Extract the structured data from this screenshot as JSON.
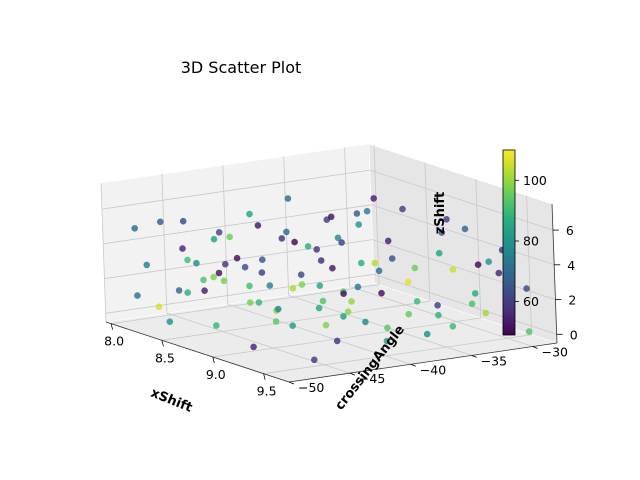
{
  "chart_data": {
    "type": "scatter",
    "subtype": "3d",
    "title": "3D Scatter Plot",
    "xlabel": "xShift",
    "ylabel": "crossingAngle",
    "zlabel": "zShift",
    "xlim": [
      7.95,
      9.75
    ],
    "ylim": [
      -50,
      -28
    ],
    "zlim": [
      -0.5,
      7.5
    ],
    "x_ticks": [
      8.0,
      8.5,
      9.0,
      9.5
    ],
    "x_tick_labels": [
      "8.0",
      "8.5",
      "9.0",
      "9.5"
    ],
    "y_ticks": [
      -50,
      -45,
      -40,
      -35,
      -30
    ],
    "y_tick_labels": [
      "−50",
      "−45",
      "−40",
      "−35",
      "−30"
    ],
    "z_ticks": [
      0,
      2,
      4,
      6
    ],
    "z_tick_labels": [
      "0",
      "2",
      "4",
      "6"
    ],
    "grid": true,
    "colormap": "viridis",
    "color_variable_range": [
      49,
      110
    ],
    "colorbar_ticks": [
      60,
      80,
      100
    ],
    "colorbar_tick_labels": [
      "60",
      "80",
      "100"
    ],
    "panes": {
      "x": "#f2f2f2",
      "y": "#e6e6e6",
      "z": "#ececec"
    },
    "points": [
      [
        8.05,
        -48.2,
        4.9,
        70
      ],
      [
        8.1,
        -46.5,
        5.2,
        66
      ],
      [
        8.12,
        -47.9,
        2.9,
        75
      ],
      [
        8.15,
        -49.0,
        1.3,
        72
      ],
      [
        8.2,
        -44.5,
        2.8,
        78
      ],
      [
        8.25,
        -46.0,
        3.9,
        55
      ],
      [
        8.28,
        -43.2,
        4.6,
        62
      ],
      [
        8.3,
        -48.5,
        0.9,
        106
      ],
      [
        8.32,
        -41.0,
        5.5,
        84
      ],
      [
        8.35,
        -45.2,
        2.2,
        92
      ],
      [
        8.4,
        -42.8,
        3.3,
        51
      ],
      [
        8.42,
        -47.1,
        1.8,
        88
      ],
      [
        8.45,
        -39.5,
        4.2,
        58
      ],
      [
        8.48,
        -44.0,
        4.8,
        96
      ],
      [
        8.5,
        -49.3,
        0.5,
        80
      ],
      [
        8.52,
        -41.8,
        2.6,
        60
      ],
      [
        8.55,
        -38.2,
        3.8,
        87
      ],
      [
        8.58,
        -45.8,
        3.1,
        52
      ],
      [
        8.6,
        -43.5,
        1.2,
        97
      ],
      [
        8.62,
        -40.5,
        5.0,
        69
      ],
      [
        8.65,
        -47.6,
        2.4,
        54
      ],
      [
        8.68,
        -36.8,
        4.4,
        79
      ],
      [
        8.7,
        -42.2,
        0.8,
        99
      ],
      [
        8.72,
        -44.8,
        3.6,
        63
      ],
      [
        8.75,
        -39.0,
        2.0,
        85
      ],
      [
        8.78,
        -46.9,
        4.1,
        58
      ],
      [
        8.8,
        -37.5,
        1.6,
        93
      ],
      [
        8.82,
        -41.5,
        4.9,
        50
      ],
      [
        8.85,
        -43.9,
        2.7,
        76
      ],
      [
        8.88,
        -35.5,
        3.2,
        103
      ],
      [
        8.9,
        -48.8,
        1.0,
        89
      ],
      [
        8.92,
        -40.2,
        3.9,
        56
      ],
      [
        8.95,
        -38.8,
        0.6,
        83
      ],
      [
        8.98,
        -45.5,
        4.6,
        65
      ],
      [
        9.0,
        -42.5,
        2.9,
        98
      ],
      [
        9.02,
        -36.2,
        1.8,
        51
      ],
      [
        9.05,
        -47.2,
        3.4,
        91
      ],
      [
        9.08,
        -39.8,
        5.2,
        60
      ],
      [
        9.1,
        -44.2,
        0.9,
        82
      ],
      [
        9.12,
        -34.8,
        2.5,
        107
      ],
      [
        9.15,
        -41.2,
        4.0,
        53
      ],
      [
        9.18,
        -46.2,
        1.5,
        94
      ],
      [
        9.2,
        -37.8,
        3.6,
        71
      ],
      [
        9.22,
        -43.0,
        5.4,
        57
      ],
      [
        9.25,
        -33.5,
        0.7,
        88
      ],
      [
        9.28,
        -40.8,
        2.3,
        100
      ],
      [
        9.3,
        -45.0,
        4.3,
        62
      ],
      [
        9.32,
        -36.5,
        1.2,
        95
      ],
      [
        9.35,
        -42.0,
        3.0,
        52
      ],
      [
        9.38,
        -31.5,
        2.0,
        86
      ],
      [
        9.4,
        -47.8,
        2.8,
        77
      ],
      [
        9.42,
        -38.5,
        4.8,
        64
      ],
      [
        9.45,
        -34.0,
        0.5,
        90
      ],
      [
        9.48,
        -44.6,
        1.7,
        98
      ],
      [
        9.5,
        -30.5,
        3.3,
        55
      ],
      [
        9.52,
        -40.0,
        0.4,
        83
      ],
      [
        9.55,
        -36.0,
        2.1,
        60
      ],
      [
        9.58,
        -42.7,
        3.9,
        73
      ],
      [
        9.6,
        -32.5,
        1.4,
        101
      ],
      [
        9.62,
        -46.8,
        0.2,
        58
      ],
      [
        9.65,
        -29.5,
        2.6,
        62
      ],
      [
        9.68,
        -38.0,
        0.9,
        79
      ],
      [
        9.7,
        -33.8,
        4.5,
        50
      ],
      [
        9.72,
        -30.0,
        0.3,
        93
      ],
      [
        8.08,
        -42.0,
        3.7,
        84
      ],
      [
        8.18,
        -39.2,
        4.4,
        53
      ],
      [
        8.22,
        -37.0,
        5.8,
        71
      ],
      [
        8.38,
        -35.2,
        4.7,
        59
      ],
      [
        8.44,
        -33.0,
        2.1,
        87
      ],
      [
        8.57,
        -31.8,
        3.5,
        54
      ],
      [
        8.63,
        -30.2,
        1.9,
        96
      ],
      [
        8.74,
        -28.8,
        4.0,
        65
      ],
      [
        8.86,
        -32.0,
        0.6,
        90
      ],
      [
        8.96,
        -29.8,
        2.4,
        105
      ],
      [
        9.06,
        -31.0,
        5.6,
        61
      ],
      [
        9.16,
        -28.5,
        3.1,
        80
      ],
      [
        9.26,
        -30.8,
        1.1,
        92
      ],
      [
        9.36,
        -29.0,
        4.2,
        57
      ],
      [
        9.46,
        -32.8,
        6.0,
        68
      ],
      [
        9.56,
        -35.8,
        5.1,
        84
      ],
      [
        8.14,
        -41.8,
        1.4,
        97
      ],
      [
        8.26,
        -40.0,
        0.2,
        89
      ],
      [
        8.36,
        -38.0,
        1.0,
        102
      ],
      [
        8.46,
        -36.4,
        0.3,
        93
      ],
      [
        8.56,
        -34.2,
        5.3,
        66
      ],
      [
        8.66,
        -33.6,
        6.3,
        54
      ],
      [
        8.76,
        -35.0,
        5.9,
        74
      ],
      [
        8.84,
        -38.6,
        6.1,
        52
      ],
      [
        8.94,
        -37.2,
        5.7,
        81
      ],
      [
        9.04,
        -34.4,
        6.5,
        60
      ],
      [
        9.14,
        -36.8,
        0.1,
        94
      ],
      [
        9.24,
        -39.4,
        0.9,
        78
      ],
      [
        9.34,
        -41.6,
        1.9,
        99
      ],
      [
        9.44,
        -43.4,
        0.6,
        57
      ],
      [
        9.54,
        -45.6,
        2.9,
        86
      ],
      [
        8.34,
        -46.6,
        5.7,
        62
      ],
      [
        8.54,
        -48.0,
        4.0,
        91
      ],
      [
        8.64,
        -49.6,
        2.6,
        70
      ],
      [
        8.94,
        -49.2,
        3.9,
        98
      ],
      [
        9.24,
        -48.6,
        0.4,
        55
      ]
    ]
  }
}
